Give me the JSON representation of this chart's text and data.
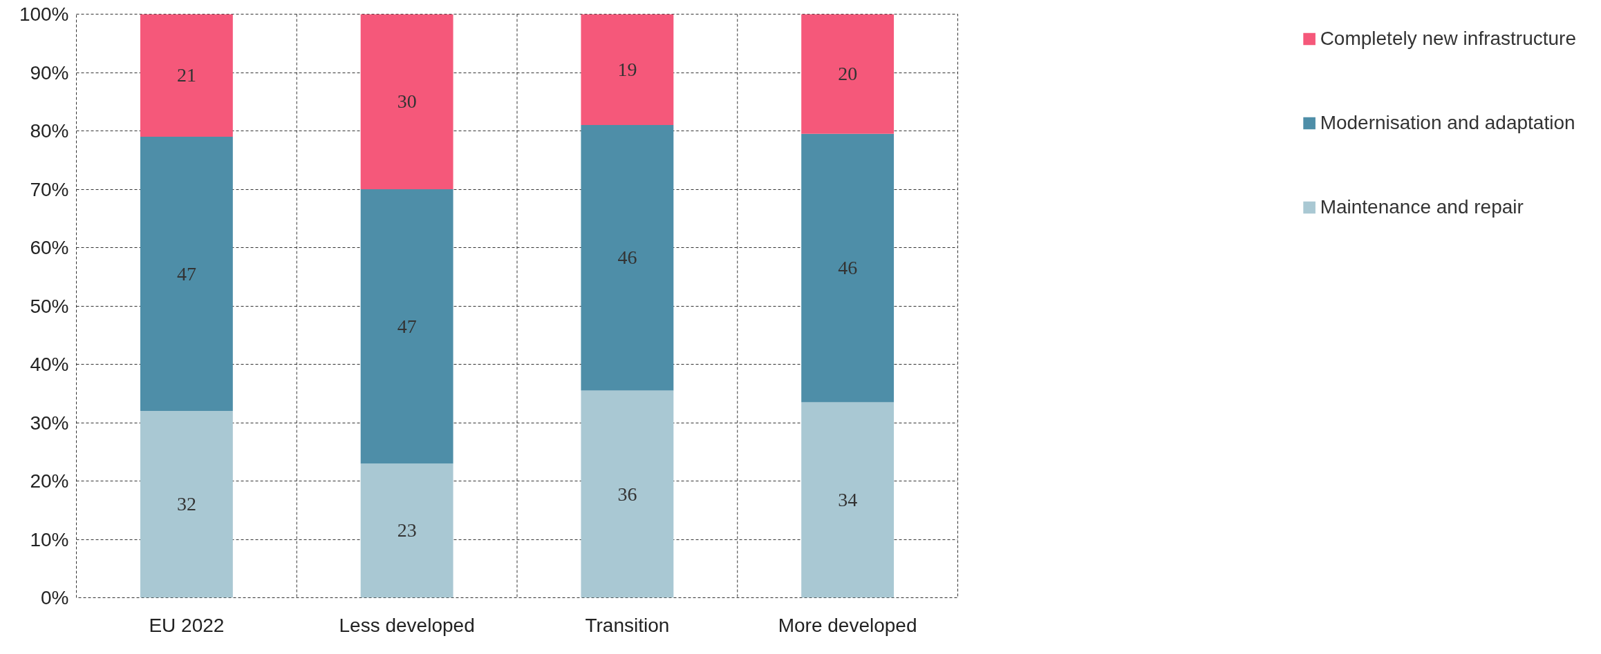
{
  "chart_data": {
    "type": "bar",
    "stacked": true,
    "categories": [
      "EU 2022",
      "Less developed",
      "Transition",
      "More developed"
    ],
    "series": [
      {
        "name": "Maintenance and repair",
        "color": "#a9c8d3",
        "values": [
          32,
          23,
          35.5,
          33.5
        ],
        "value_labels": [
          "32",
          "23",
          "36",
          "34"
        ]
      },
      {
        "name": "Modernisation and adaptation",
        "color": "#4e8ea8",
        "values": [
          47,
          47,
          45.5,
          46
        ],
        "value_labels": [
          "47",
          "47",
          "46",
          "46"
        ]
      },
      {
        "name": "Completely new infrastructure",
        "color": "#f5587a",
        "values": [
          21,
          30,
          19,
          20.5
        ],
        "value_labels": [
          "21",
          "30",
          "19",
          "20"
        ]
      }
    ],
    "ylim": [
      0,
      100
    ],
    "yticks": [
      {
        "value": 0,
        "label": "0%"
      },
      {
        "value": 10,
        "label": "10%"
      },
      {
        "value": 20,
        "label": "20%"
      },
      {
        "value": 30,
        "label": "30%"
      },
      {
        "value": 40,
        "label": "40%"
      },
      {
        "value": 50,
        "label": "50%"
      },
      {
        "value": 60,
        "label": "60%"
      },
      {
        "value": 70,
        "label": "70%"
      },
      {
        "value": 80,
        "label": "80%"
      },
      {
        "value": 90,
        "label": "90%"
      },
      {
        "value": 100,
        "label": "100%"
      }
    ],
    "grid": true,
    "legend": "right"
  }
}
